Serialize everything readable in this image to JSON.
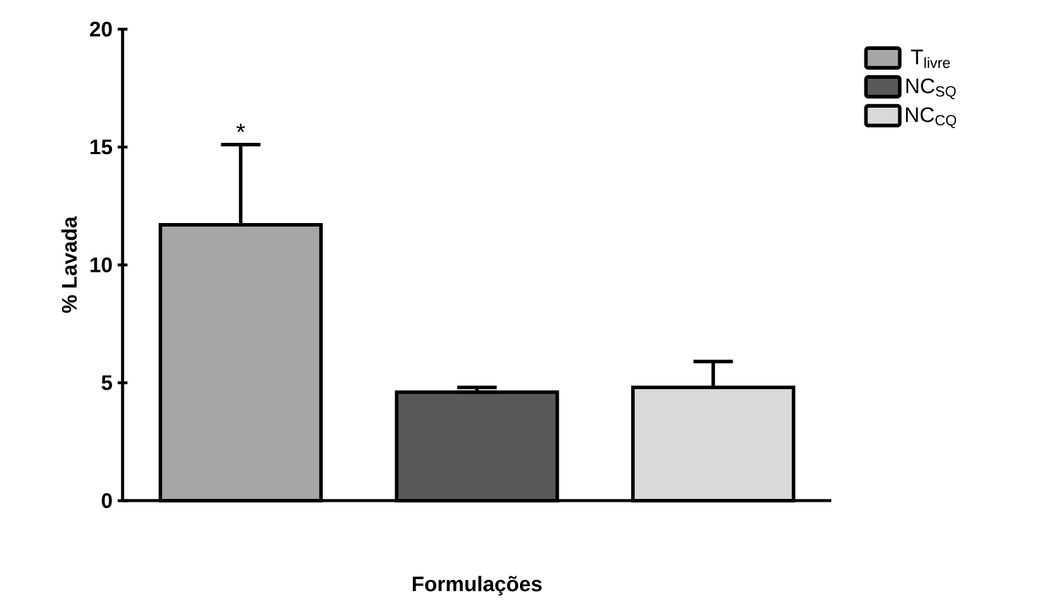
{
  "chart_data": {
    "type": "bar",
    "xlabel": "Formulações",
    "ylabel": "% Lavada",
    "categories": [
      null,
      null,
      null
    ],
    "series": [
      {
        "name": "T$_{livre}$",
        "color": "#a6a6a6",
        "values": [
          11.7,
          null,
          null
        ],
        "errors": [
          [
            11.7,
            15.1
          ],
          null,
          null
        ]
      },
      {
        "name": "NC$_{SQ}$",
        "color": "#595959",
        "values": [
          null,
          4.6,
          null
        ],
        "errors": [
          null,
          [
            4.6,
            4.8
          ],
          null
        ]
      },
      {
        "name": "NC$_{CQ}$",
        "color": "#d9d9d9",
        "values": [
          null,
          null,
          4.8
        ],
        "errors": [
          null,
          null,
          [
            4.8,
            5.9
          ]
        ]
      }
    ],
    "ylim": [
      0,
      20
    ],
    "yticks": [
      0,
      5,
      10,
      15,
      20
    ],
    "tick_labels": "y",
    "legend": "top right",
    "grid": false,
    "annotations": [
      "*"
    ]
  }
}
